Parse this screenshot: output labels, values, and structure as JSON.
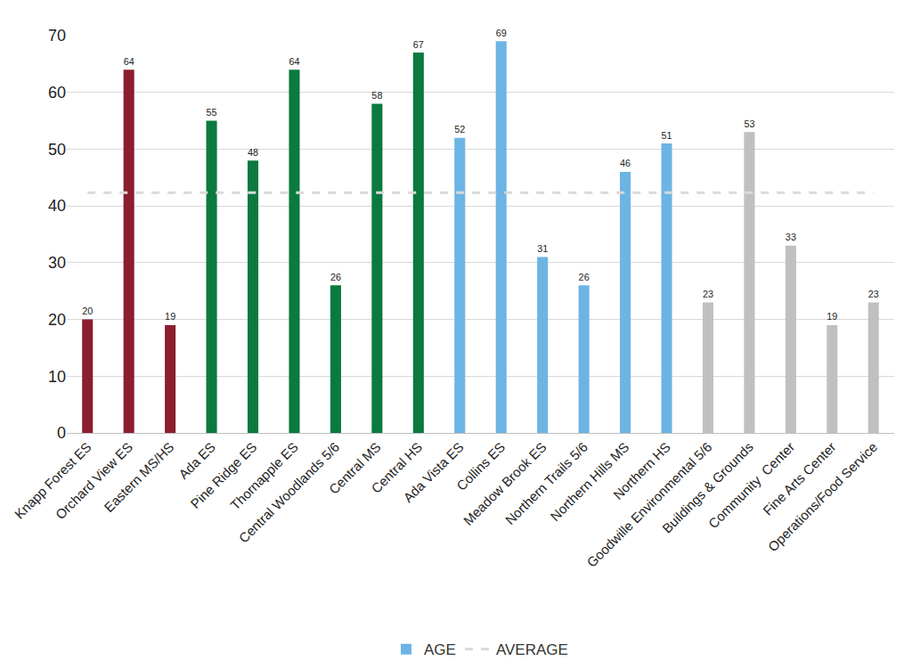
{
  "chart_data": {
    "type": "bar",
    "categories": [
      "Knapp Forest ES",
      "Orchard View ES",
      "Eastern MS/HS",
      "Ada ES",
      "Pine Ridge ES",
      "Thornapple ES",
      "Central Woodlands 5/6",
      "Central MS",
      "Central HS",
      "Ada Vista ES",
      "Collins ES",
      "Meadow Brook ES",
      "Northern Trails 5/6",
      "Northern Hills MS",
      "Northern HS",
      "Goodwille Environmental 5/6",
      "Buildings & Grounds",
      "Community  Center",
      "Fine Arts Center",
      "Operations/Food Service"
    ],
    "series": [
      {
        "name": "AGE",
        "type": "bar",
        "color": "#6cb4e4",
        "colors": [
          "#8b1e2f",
          "#8b1e2f",
          "#8b1e2f",
          "#0a7a3e",
          "#0a7a3e",
          "#0a7a3e",
          "#0a7a3e",
          "#0a7a3e",
          "#0a7a3e",
          "#6cb4e4",
          "#6cb4e4",
          "#6cb4e4",
          "#6cb4e4",
          "#6cb4e4",
          "#6cb4e4",
          "#c0c0c0",
          "#c0c0c0",
          "#c0c0c0",
          "#c0c0c0",
          "#c0c0c0"
        ],
        "values": [
          20,
          64,
          19,
          55,
          48,
          64,
          26,
          58,
          67,
          52,
          69,
          31,
          26,
          46,
          51,
          23,
          53,
          33,
          19,
          23
        ]
      },
      {
        "name": "AVERAGE",
        "type": "line",
        "line_style": "dashed",
        "color": "#d9d9d9",
        "values": [
          42.35,
          42.35,
          42.35,
          42.35,
          42.35,
          42.35,
          42.35,
          42.35,
          42.35,
          42.35,
          42.35,
          42.35,
          42.35,
          42.35,
          42.35,
          42.35,
          42.35,
          42.35,
          42.35,
          42.35
        ]
      }
    ],
    "ylim": [
      0,
      70
    ],
    "yticks": [
      0,
      10,
      20,
      30,
      40,
      50,
      60,
      70
    ],
    "grid": true,
    "data_labels": true,
    "legend": "bottom"
  }
}
